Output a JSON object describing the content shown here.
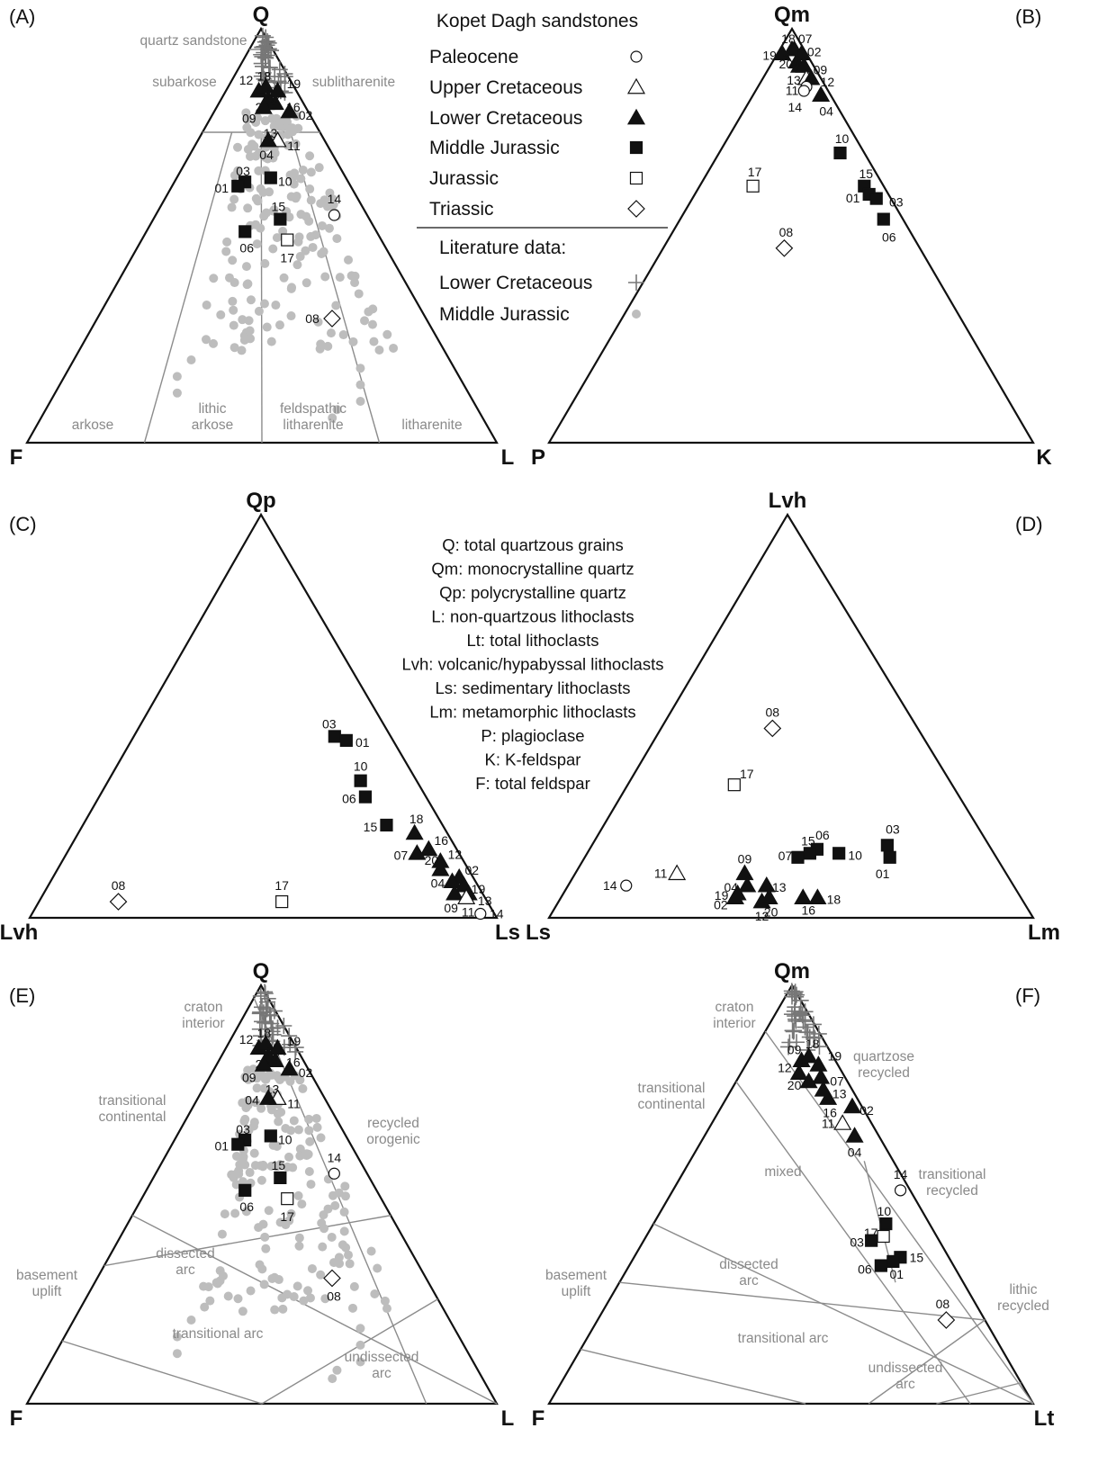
{
  "legend": {
    "title": "Kopet Dagh sandstones",
    "entries": [
      {
        "label": "Paleocene",
        "marker": "circle-open"
      },
      {
        "label": "Upper Cretaceous",
        "marker": "triangle-open"
      },
      {
        "label": "Lower Cretaceous",
        "marker": "triangle-filled"
      },
      {
        "label": "Middle Jurassic",
        "marker": "square-filled"
      },
      {
        "label": "Jurassic",
        "marker": "square-open"
      },
      {
        "label": "Triassic",
        "marker": "diamond-open"
      }
    ],
    "literature_title": "Literature data:",
    "literature_entries": [
      {
        "label": "Lower Cretaceous",
        "marker": "plus"
      },
      {
        "label": "Middle Jurassic",
        "marker": "dot-gray"
      }
    ]
  },
  "definitions": [
    "Q: total quartzous grains",
    "Qm: monocrystalline quartz",
    "Qp: polycrystalline quartz",
    "L: non-quartzous lithoclasts",
    "Lt: total lithoclasts",
    "Lvh: volcanic/hypabyssal lithoclasts",
    "Ls: sedimentary lithoclasts",
    "Lm: metamorphic lithoclasts",
    "P: plagioclase",
    "K: K-feldspar",
    "F: total feldspar"
  ],
  "colors": {
    "black": "#111111",
    "boundary_gray": "#8c8c8c",
    "literature_gray": "#bdbdbd",
    "region_text": "#8a8a8a"
  },
  "chart_data": [
    {
      "panel": "(A)",
      "type": "scatter",
      "coordinates": "ternary",
      "vertices": {
        "top": "Q",
        "left": "F",
        "right": "L"
      },
      "fields": [
        "quartz sandstone",
        "subarkose",
        "sublitharenite",
        "arkose",
        "lithic arkose",
        "feldspathic litharenite",
        "litharenite"
      ],
      "points": [
        {
          "id": "12",
          "marker": "triangle-filled",
          "Q": 85,
          "F": 8,
          "L": 7
        },
        {
          "id": "18",
          "marker": "triangle-filled",
          "Q": 86,
          "F": 6,
          "L": 8
        },
        {
          "id": "19",
          "marker": "triangle-filled",
          "Q": 85,
          "F": 4,
          "L": 11
        },
        {
          "id": "16",
          "marker": "triangle-filled",
          "Q": 82,
          "F": 6,
          "L": 12
        },
        {
          "id": "07",
          "marker": "triangle-filled",
          "Q": 83,
          "F": 7,
          "L": 10
        },
        {
          "id": "20",
          "marker": "triangle-filled",
          "Q": 82,
          "F": 8,
          "L": 10
        },
        {
          "id": "09",
          "marker": "triangle-filled",
          "Q": 81,
          "F": 9,
          "L": 10
        },
        {
          "id": "02",
          "marker": "triangle-filled",
          "Q": 80,
          "F": 4,
          "L": 16
        },
        {
          "id": "13",
          "marker": "triangle-open",
          "Q": 73,
          "F": 10,
          "L": 17
        },
        {
          "id": "11",
          "marker": "triangle-open",
          "Q": 73,
          "F": 10,
          "L": 17
        },
        {
          "id": "04",
          "marker": "triangle-filled",
          "Q": 73,
          "F": 12,
          "L": 15
        },
        {
          "id": "03",
          "marker": "square-filled",
          "Q": 63,
          "F": 22,
          "L": 15
        },
        {
          "id": "01",
          "marker": "square-filled",
          "Q": 62,
          "F": 24,
          "L": 14
        },
        {
          "id": "10",
          "marker": "square-filled",
          "Q": 64,
          "F": 16,
          "L": 20
        },
        {
          "id": "15",
          "marker": "square-filled",
          "Q": 54,
          "F": 19,
          "L": 27
        },
        {
          "id": "06",
          "marker": "square-filled",
          "Q": 51,
          "F": 28,
          "L": 21
        },
        {
          "id": "17",
          "marker": "square-open",
          "Q": 49,
          "F": 20,
          "L": 31
        },
        {
          "id": "14",
          "marker": "circle-open",
          "Q": 55,
          "F": 7,
          "L": 38
        },
        {
          "id": "08",
          "marker": "diamond-open",
          "Q": 30,
          "F": 20,
          "L": 50
        }
      ]
    },
    {
      "panel": "(B)",
      "type": "scatter",
      "coordinates": "ternary",
      "vertices": {
        "top": "Qm",
        "left": "P",
        "right": "K"
      },
      "points": [
        {
          "id": "19",
          "marker": "triangle-filled",
          "Qm": 94,
          "P": 5,
          "K": 1
        },
        {
          "id": "18",
          "marker": "triangle-filled",
          "Qm": 95,
          "P": 2.5,
          "K": 2.5
        },
        {
          "id": "07",
          "marker": "triangle-filled",
          "Qm": 95,
          "P": 2,
          "K": 3
        },
        {
          "id": "02",
          "marker": "triangle-filled",
          "Qm": 94,
          "P": 1,
          "K": 5
        },
        {
          "id": "20",
          "marker": "triangle-filled",
          "Qm": 92,
          "P": 3,
          "K": 5
        },
        {
          "id": "16",
          "marker": "triangle-filled",
          "Qm": 91,
          "P": 3,
          "K": 6
        },
        {
          "id": "09",
          "marker": "triangle-filled",
          "Qm": 91,
          "P": 2,
          "K": 7
        },
        {
          "id": "13",
          "marker": "triangle-open",
          "Qm": 88,
          "P": 3,
          "K": 9
        },
        {
          "id": "12",
          "marker": "triangle-filled",
          "Qm": 88,
          "P": 2,
          "K": 10
        },
        {
          "id": "11",
          "marker": "circle-open",
          "Qm": 86,
          "P": 4,
          "K": 10
        },
        {
          "id": "04",
          "marker": "triangle-filled",
          "Qm": 84,
          "P": 2,
          "K": 14
        },
        {
          "id": "14",
          "marker": "circle-open",
          "Qm": 85,
          "P": 5,
          "K": 10
        },
        {
          "id": "10",
          "marker": "square-filled",
          "Qm": 70,
          "P": 5,
          "K": 25
        },
        {
          "id": "15",
          "marker": "square-filled",
          "Qm": 62,
          "P": 4,
          "K": 34
        },
        {
          "id": "01",
          "marker": "square-filled",
          "Qm": 60,
          "P": 4,
          "K": 36
        },
        {
          "id": "03",
          "marker": "square-filled",
          "Qm": 59,
          "P": 3,
          "K": 38
        },
        {
          "id": "06",
          "marker": "square-filled",
          "Qm": 54,
          "P": 4,
          "K": 42
        },
        {
          "id": "17",
          "marker": "square-open",
          "Qm": 62,
          "P": 27,
          "K": 11
        },
        {
          "id": "08",
          "marker": "diamond-open",
          "Qm": 47,
          "P": 28,
          "K": 25
        }
      ]
    },
    {
      "panel": "(C)",
      "type": "scatter",
      "coordinates": "ternary",
      "vertices": {
        "top": "Qp",
        "left": "Lvh",
        "right": "Ls"
      },
      "points": [
        {
          "id": "03",
          "marker": "square-filled",
          "Qp": 45,
          "Lvh": 12,
          "Ls": 43
        },
        {
          "id": "01",
          "marker": "square-filled",
          "Qp": 44,
          "Lvh": 10,
          "Ls": 46
        },
        {
          "id": "10",
          "marker": "square-filled",
          "Qp": 34,
          "Lvh": 12,
          "Ls": 54
        },
        {
          "id": "06",
          "marker": "square-filled",
          "Qp": 30,
          "Lvh": 13,
          "Ls": 57
        },
        {
          "id": "15",
          "marker": "square-filled",
          "Qp": 23,
          "Lvh": 12,
          "Ls": 65
        },
        {
          "id": "18",
          "marker": "triangle-filled",
          "Qp": 21,
          "Lvh": 7,
          "Ls": 72
        },
        {
          "id": "16",
          "marker": "triangle-filled",
          "Qp": 17,
          "Lvh": 6,
          "Ls": 77
        },
        {
          "id": "07",
          "marker": "triangle-filled",
          "Qp": 16,
          "Lvh": 9,
          "Ls": 75
        },
        {
          "id": "12",
          "marker": "triangle-filled",
          "Qp": 14,
          "Lvh": 5,
          "Ls": 81
        },
        {
          "id": "20",
          "marker": "triangle-filled",
          "Qp": 12,
          "Lvh": 6,
          "Ls": 82
        },
        {
          "id": "02",
          "marker": "triangle-filled",
          "Qp": 10,
          "Lvh": 3,
          "Ls": 87
        },
        {
          "id": "04",
          "marker": "triangle-filled",
          "Qp": 9,
          "Lvh": 5,
          "Ls": 86
        },
        {
          "id": "19",
          "marker": "triangle-filled",
          "Qp": 8,
          "Lvh": 3,
          "Ls": 89
        },
        {
          "id": "09",
          "marker": "triangle-filled",
          "Qp": 6,
          "Lvh": 6,
          "Ls": 88
        },
        {
          "id": "13",
          "marker": "triangle-filled",
          "Qp": 6,
          "Lvh": 3,
          "Ls": 91
        },
        {
          "id": "11",
          "marker": "triangle-open",
          "Qp": 5,
          "Lvh": 4,
          "Ls": 91
        },
        {
          "id": "14",
          "marker": "circle-open",
          "Qp": 1,
          "Lvh": 3,
          "Ls": 96
        },
        {
          "id": "17",
          "marker": "square-open",
          "Qp": 4,
          "Lvh": 44,
          "Ls": 52
        },
        {
          "id": "08",
          "marker": "diamond-open",
          "Qp": 4,
          "Lvh": 79,
          "Ls": 17
        }
      ]
    },
    {
      "panel": "(D)",
      "type": "scatter",
      "coordinates": "ternary",
      "vertices": {
        "top": "Lvh",
        "left": "Ls",
        "right": "Lm"
      },
      "points": [
        {
          "id": "08",
          "marker": "diamond-open",
          "Lvh": 47,
          "Ls": 30,
          "Lm": 23
        },
        {
          "id": "17",
          "marker": "square-open",
          "Lvh": 33,
          "Ls": 45,
          "Lm": 22
        },
        {
          "id": "03",
          "marker": "square-filled",
          "Lvh": 18,
          "Ls": 21,
          "Lm": 61
        },
        {
          "id": "01",
          "marker": "square-filled",
          "Lvh": 15,
          "Ls": 22,
          "Lm": 63
        },
        {
          "id": "10",
          "marker": "square-filled",
          "Lvh": 16,
          "Ls": 32,
          "Lm": 52
        },
        {
          "id": "06",
          "marker": "square-filled",
          "Lvh": 17,
          "Ls": 36,
          "Lm": 47
        },
        {
          "id": "15",
          "marker": "square-filled",
          "Lvh": 16,
          "Ls": 38,
          "Lm": 46
        },
        {
          "id": "07",
          "marker": "square-filled",
          "Lvh": 15,
          "Ls": 41,
          "Lm": 44
        },
        {
          "id": "09",
          "marker": "triangle-filled",
          "Lvh": 11,
          "Ls": 54,
          "Lm": 35
        },
        {
          "id": "04",
          "marker": "triangle-filled",
          "Lvh": 8,
          "Ls": 55,
          "Lm": 37
        },
        {
          "id": "13",
          "marker": "triangle-filled",
          "Lvh": 8,
          "Ls": 51,
          "Lm": 41
        },
        {
          "id": "19",
          "marker": "triangle-filled",
          "Lvh": 6,
          "Ls": 58,
          "Lm": 36
        },
        {
          "id": "02",
          "marker": "triangle-filled",
          "Lvh": 5,
          "Ls": 59,
          "Lm": 36
        },
        {
          "id": "12",
          "marker": "triangle-filled",
          "Lvh": 4,
          "Ls": 54,
          "Lm": 42
        },
        {
          "id": "20",
          "marker": "triangle-filled",
          "Lvh": 5,
          "Ls": 52,
          "Lm": 43
        },
        {
          "id": "16",
          "marker": "triangle-filled",
          "Lvh": 5,
          "Ls": 45,
          "Lm": 50
        },
        {
          "id": "18",
          "marker": "triangle-filled",
          "Lvh": 5,
          "Ls": 42,
          "Lm": 53
        },
        {
          "id": "11",
          "marker": "triangle-open",
          "Lvh": 11,
          "Ls": 68,
          "Lm": 21
        },
        {
          "id": "14",
          "marker": "circle-open",
          "Lvh": 8,
          "Ls": 80,
          "Lm": 12
        }
      ]
    },
    {
      "panel": "(E)",
      "type": "scatter",
      "coordinates": "ternary",
      "vertices": {
        "top": "Q",
        "left": "F",
        "right": "L"
      },
      "fields": [
        "craton interior",
        "transitional continental",
        "basement uplift",
        "recycled orogenic",
        "dissected arc",
        "transitional arc",
        "undissected arc"
      ]
    },
    {
      "panel": "(F)",
      "type": "scatter",
      "coordinates": "ternary",
      "vertices": {
        "top": "Qm",
        "left": "F",
        "right": "Lt"
      },
      "fields": [
        "craton interior",
        "quartzose recycled",
        "transitional continental",
        "mixed",
        "transitional recycled",
        "basement uplift",
        "dissected arc",
        "transitional arc",
        "undissected arc",
        "lithic recycled"
      ],
      "points": [
        {
          "id": "09",
          "marker": "triangle-filled",
          "Qm": 82,
          "F": 7,
          "Lt": 11
        },
        {
          "id": "18",
          "marker": "triangle-filled",
          "Qm": 83,
          "F": 5,
          "Lt": 12
        },
        {
          "id": "19",
          "marker": "triangle-filled",
          "Qm": 81,
          "F": 4,
          "Lt": 15
        },
        {
          "id": "12",
          "marker": "triangle-filled",
          "Qm": 79,
          "F": 9,
          "Lt": 12
        },
        {
          "id": "07",
          "marker": "triangle-filled",
          "Qm": 78,
          "F": 5,
          "Lt": 17
        },
        {
          "id": "20",
          "marker": "triangle-filled",
          "Qm": 77,
          "F": 8,
          "Lt": 15
        },
        {
          "id": "13",
          "marker": "triangle-filled",
          "Qm": 75,
          "F": 6,
          "Lt": 19
        },
        {
          "id": "16",
          "marker": "triangle-filled",
          "Qm": 73,
          "F": 6,
          "Lt": 21
        },
        {
          "id": "02",
          "marker": "triangle-filled",
          "Qm": 71,
          "F": 2,
          "Lt": 27
        },
        {
          "id": "11",
          "marker": "triangle-open",
          "Qm": 67,
          "F": 6,
          "Lt": 27
        },
        {
          "id": "04",
          "marker": "triangle-filled",
          "Qm": 64,
          "F": 5,
          "Lt": 31
        },
        {
          "id": "14",
          "marker": "circle-open",
          "Qm": 51,
          "F": 2,
          "Lt": 47
        },
        {
          "id": "10",
          "marker": "square-filled",
          "Qm": 43,
          "F": 9,
          "Lt": 48
        },
        {
          "id": "17",
          "marker": "square-open",
          "Qm": 40,
          "F": 11,
          "Lt": 49
        },
        {
          "id": "03",
          "marker": "square-filled",
          "Qm": 39,
          "F": 14,
          "Lt": 47
        },
        {
          "id": "15",
          "marker": "square-filled",
          "Qm": 35,
          "F": 10,
          "Lt": 55
        },
        {
          "id": "06",
          "marker": "square-filled",
          "Qm": 33,
          "F": 15,
          "Lt": 52
        },
        {
          "id": "01",
          "marker": "square-filled",
          "Qm": 34,
          "F": 12,
          "Lt": 54
        },
        {
          "id": "08",
          "marker": "diamond-open",
          "Qm": 20,
          "F": 8,
          "Lt": 72
        }
      ]
    }
  ]
}
